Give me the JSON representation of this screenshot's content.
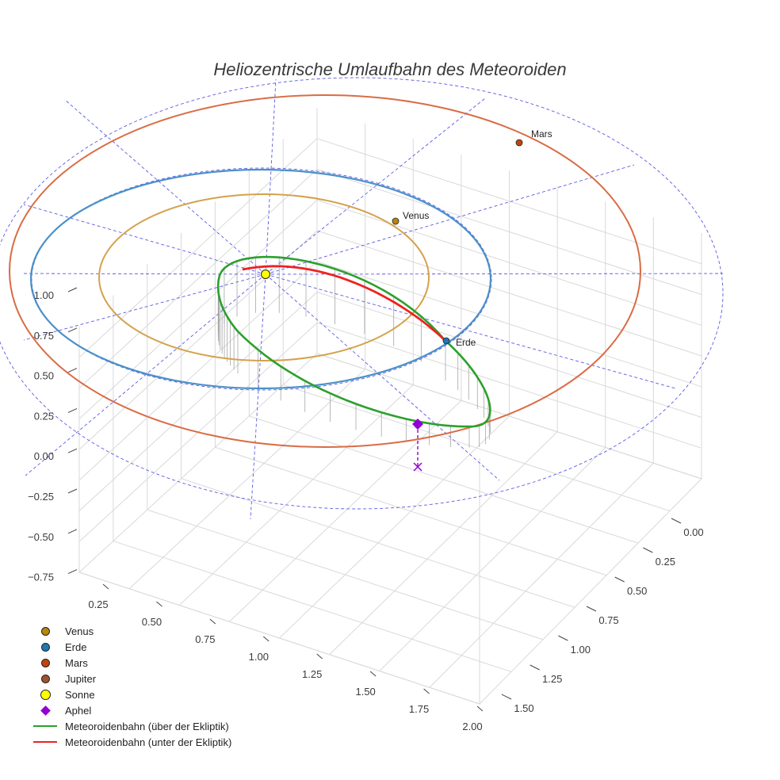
{
  "chart_data": {
    "type": "scatter3d",
    "title": "Heliozentrische Umlaufbahn des Meteoroiden",
    "x_axis": {
      "ticks": [
        "0.25",
        "0.50",
        "0.75",
        "1.00",
        "1.25",
        "1.50",
        "1.75",
        "2.00"
      ],
      "range": [
        0.1,
        2.0
      ]
    },
    "y_axis": {
      "ticks": [
        "0.00",
        "0.25",
        "0.50",
        "0.75",
        "1.00",
        "1.25",
        "1.50"
      ],
      "range": [
        -0.1,
        1.6
      ]
    },
    "z_axis": {
      "ticks": [
        "1.00",
        "0.75",
        "0.50",
        "0.25",
        "0.00",
        "−0.25",
        "−0.50",
        "−0.75"
      ],
      "range": [
        -0.8,
        1.1
      ]
    },
    "planets": [
      {
        "name": "Venus",
        "label": "Venus",
        "color": "#b8860b",
        "orbit_color": "#d4a24c"
      },
      {
        "name": "Erde",
        "label": "Erde",
        "color": "#1f77b4",
        "orbit_color": "#4a90c8"
      },
      {
        "name": "Mars",
        "label": "Mars",
        "color": "#c1440e",
        "orbit_color": "#d96c44"
      },
      {
        "name": "Jupiter",
        "label": "",
        "color": "#a0522d",
        "orbit_color": "#a0522d"
      }
    ],
    "sun": {
      "name": "Sonne",
      "color": "#ffff00"
    },
    "aphel": {
      "name": "Aphel",
      "color": "#9400d3"
    },
    "meteoroid": [
      {
        "name": "Meteoroidenbahn (über der Ekliptik)",
        "color": "#2ca02c"
      },
      {
        "name": "Meteoroidenbahn (unter der Ekliptik)",
        "color": "#ee2222"
      }
    ]
  },
  "legend": [
    {
      "label": "Venus",
      "kind": "dot",
      "color": "#b8860b"
    },
    {
      "label": "Erde",
      "kind": "dot",
      "color": "#1f77b4"
    },
    {
      "label": "Mars",
      "kind": "dot",
      "color": "#c1440e"
    },
    {
      "label": "Jupiter",
      "kind": "dot",
      "color": "#a0522d"
    },
    {
      "label": "Sonne",
      "kind": "sun",
      "color": "#ffff00"
    },
    {
      "label": "Aphel",
      "kind": "diamond",
      "color": "#9400d3"
    },
    {
      "label": "Meteoroidenbahn (über der Ekliptik)",
      "kind": "line",
      "color": "#2ca02c"
    },
    {
      "label": "Meteoroidenbahn (unter der Ekliptik)",
      "kind": "line",
      "color": "#ee2222"
    }
  ]
}
